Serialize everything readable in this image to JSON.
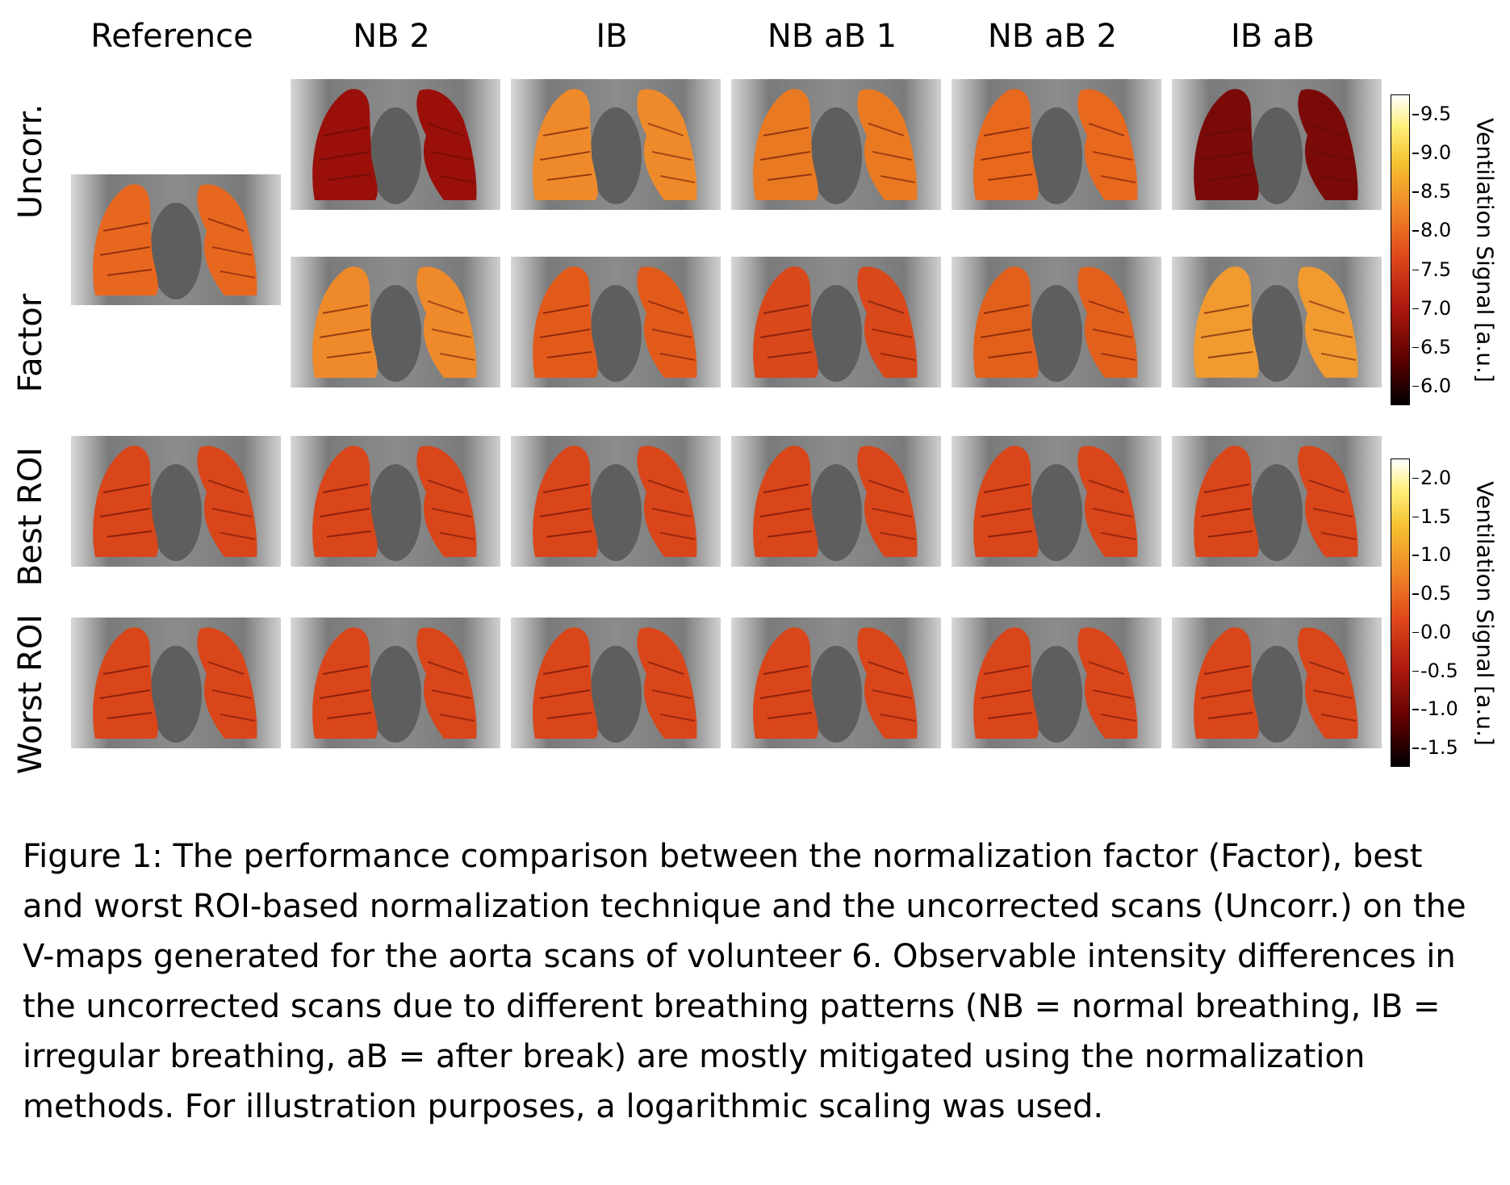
{
  "columns": [
    "Reference",
    "NB 2",
    "IB",
    "NB aB 1",
    "NB aB 2",
    "IB aB"
  ],
  "rows": [
    "Uncorr.",
    "Factor",
    "Best ROI",
    "Worst ROI"
  ],
  "colorbars": [
    {
      "label": "Ventilation Signal [a.u.]",
      "ticks": [
        "9.5",
        "9.0",
        "8.5",
        "8.0",
        "7.5",
        "7.0",
        "6.5",
        "6.0"
      ]
    },
    {
      "label": "Ventilation Signal [a.u.]",
      "ticks": [
        "2.0",
        "1.5",
        "1.0",
        "0.5",
        "0.0",
        "-0.5",
        "-1.0",
        "-1.5"
      ]
    }
  ],
  "caption": "Figure 1: The performance comparison between the normalization factor (Factor), best and worst ROI-based normalization technique and the uncorrected scans (Uncorr.) on the V-maps generated for the aorta scans of volunteer 6. Observable intensity differences in the uncorrected scans due to different breathing patterns (NB = normal breathing, IB = irregular breathing, aB = after break) are mostly mitigated using the normalization methods. For illustration purposes, a logarithmic scaling was used.",
  "colors": {
    "hot_map": [
      "#000000",
      "#5a0000",
      "#b01a10",
      "#e0481a",
      "#f08a28",
      "#f5c030",
      "#fff07a",
      "#ffffff"
    ]
  }
}
